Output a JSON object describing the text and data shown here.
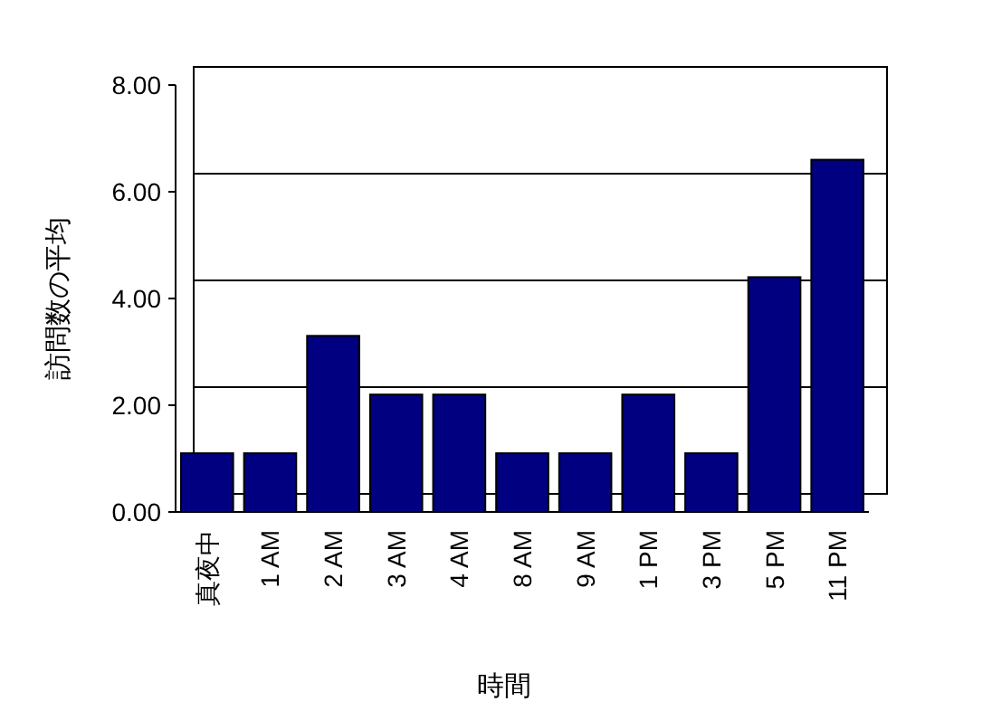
{
  "chart_data": {
    "type": "bar",
    "xlabel": "時間",
    "ylabel": "訪問数の平均",
    "categories": [
      "真夜中",
      "1 AM",
      "2 AM",
      "3 AM",
      "4 AM",
      "8 AM",
      "9 AM",
      "1 PM",
      "3 PM",
      "5 PM",
      "11 PM"
    ],
    "values": [
      1.1,
      1.1,
      3.3,
      2.2,
      2.2,
      1.1,
      1.1,
      2.2,
      1.1,
      4.4,
      6.6
    ],
    "color": "#000080",
    "ylim": [
      0,
      8
    ],
    "yticks": [
      {
        "value": 0,
        "label": "0.00"
      },
      {
        "value": 2,
        "label": "2.00"
      },
      {
        "value": 4,
        "label": "4.00"
      },
      {
        "value": 6,
        "label": "6.00"
      },
      {
        "value": 8,
        "label": "8.00"
      }
    ],
    "grid": "y"
  }
}
